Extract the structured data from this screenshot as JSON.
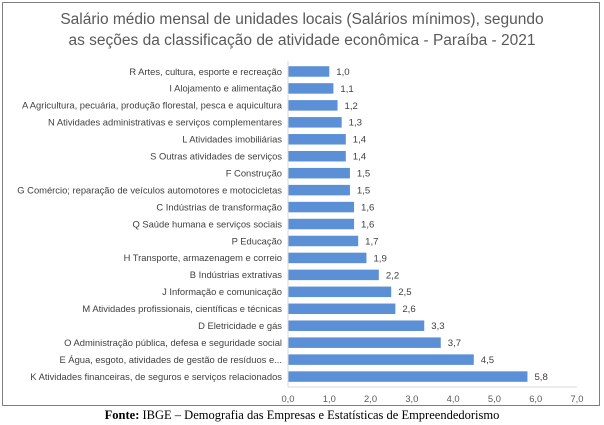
{
  "chart_data": {
    "type": "bar",
    "orientation": "horizontal",
    "title": "Salário médio mensal de unidades locais (Salários mínimos),  segundo as seções da classificação de atividade econômica - Paraíba - 2021",
    "title_lines": [
      "Salário médio mensal de unidades locais (Salários mínimos),  segundo",
      "as seções da classificação de atividade econômica - Paraíba - 2021"
    ],
    "categories": [
      "R Artes, cultura, esporte e recreação",
      "I Alojamento e alimentação",
      "A Agricultura, pecuária, produção florestal, pesca e aquicultura",
      "N Atividades administrativas e serviços complementares",
      "L Atividades imobiliárias",
      "S Outras atividades de serviços",
      "F Construção",
      "G Comércio; reparação de veículos automotores e motocicletas",
      "C Indústrias de transformação",
      "Q Saúde humana e serviços sociais",
      "P Educação",
      "H Transporte, armazenagem e correio",
      "B Indústrias extrativas",
      "J Informação e comunicação",
      "M Atividades profissionais, científicas e técnicas",
      "D Eletricidade e gás",
      "O Administração pública, defesa e seguridade social",
      "E Água, esgoto, atividades de gestão de resíduos e...",
      "K Atividades financeiras, de seguros e serviços relacionados"
    ],
    "values": [
      1.0,
      1.1,
      1.2,
      1.3,
      1.4,
      1.4,
      1.5,
      1.5,
      1.6,
      1.6,
      1.7,
      1.9,
      2.2,
      2.5,
      2.6,
      3.3,
      3.7,
      4.5,
      5.8
    ],
    "value_labels": [
      "1,0",
      "1,1",
      "1,2",
      "1,3",
      "1,4",
      "1,4",
      "1,5",
      "1,5",
      "1,6",
      "1,6",
      "1,7",
      "1,9",
      "2,2",
      "2,5",
      "2,6",
      "3,3",
      "3,7",
      "4,5",
      "5,8"
    ],
    "xlim": [
      0,
      7
    ],
    "x_ticks": [
      0,
      1,
      2,
      3,
      4,
      5,
      6,
      7
    ],
    "x_tick_labels": [
      "0,0",
      "1,0",
      "2,0",
      "3,0",
      "4,0",
      "5,0",
      "6,0",
      "7,0"
    ],
    "xlabel": "",
    "ylabel": "",
    "grid": false,
    "legend": "none",
    "bar_color": "#5b8fd6"
  },
  "source": {
    "label": "Fonte:",
    "text": " IBGE – Demografia das Empresas e Estatísticas de Empreendedorismo"
  }
}
